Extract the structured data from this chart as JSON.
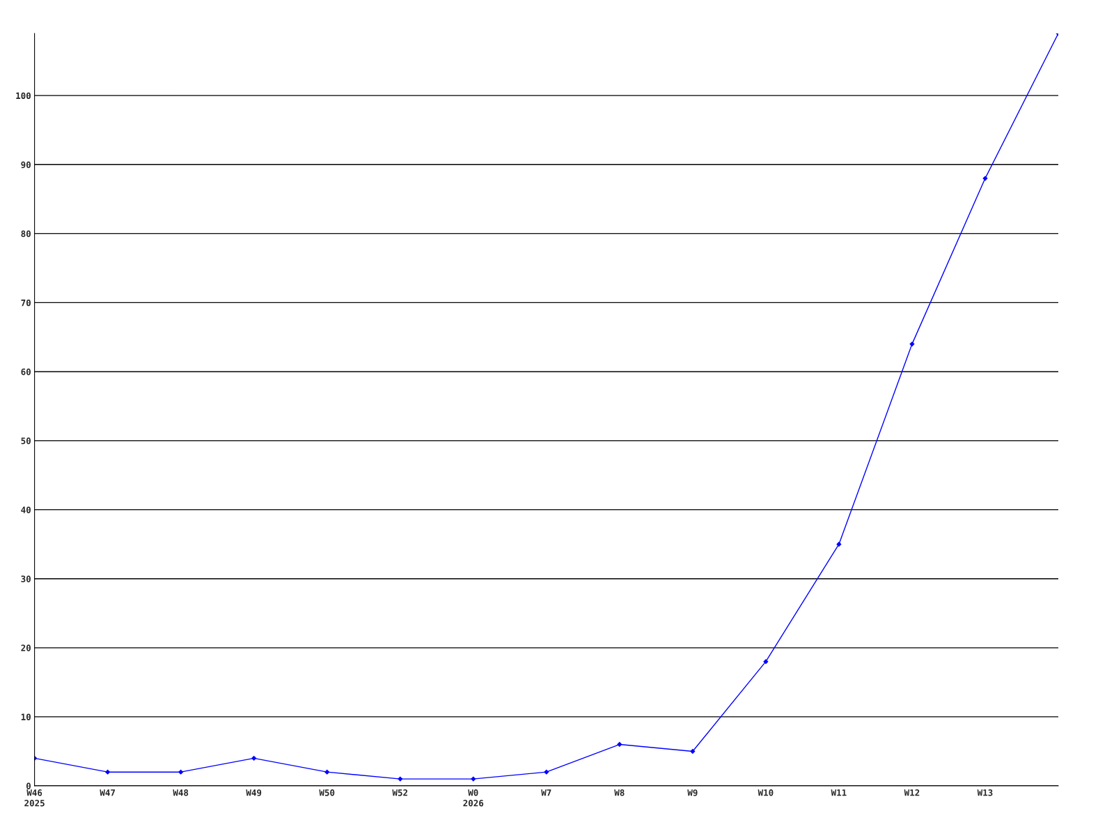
{
  "chart_data": {
    "type": "line",
    "categories": [
      "W46\n2025",
      "W47",
      "W48",
      "W49",
      "W50",
      "W52",
      "W0\n2026",
      "W7",
      "W8",
      "W9",
      "W10",
      "W11",
      "W12",
      "W13",
      null
    ],
    "series": [
      {
        "color": "#0000ff",
        "values": [
          4,
          2,
          2,
          4,
          2,
          1,
          1,
          2,
          6,
          5,
          18,
          35,
          64,
          88,
          109
        ]
      }
    ],
    "ylim": [
      0,
      109
    ],
    "yticks": [
      0,
      10,
      20,
      30,
      40,
      50,
      60,
      70,
      80,
      90,
      100
    ],
    "grid": "y",
    "marker": "diamond",
    "line_style": "solid",
    "legend": false
  }
}
